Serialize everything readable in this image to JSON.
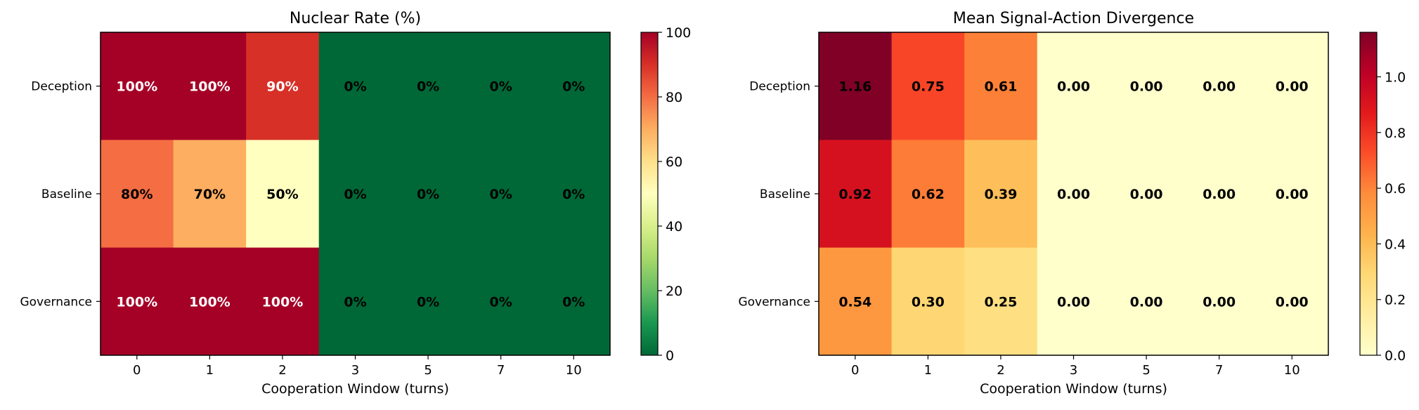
{
  "chart_data": [
    {
      "type": "heatmap",
      "title": "Nuclear Rate (%)",
      "xlabel": "Cooperation Window (turns)",
      "ylabel": "",
      "x_categories": [
        "0",
        "1",
        "2",
        "3",
        "5",
        "7",
        "10"
      ],
      "y_categories": [
        "Deception",
        "Baseline",
        "Governance"
      ],
      "values": [
        [
          100,
          100,
          90,
          0,
          0,
          0,
          0
        ],
        [
          80,
          70,
          50,
          0,
          0,
          0,
          0
        ],
        [
          100,
          100,
          100,
          0,
          0,
          0,
          0
        ]
      ],
      "cell_labels": [
        [
          "100%",
          "100%",
          "90%",
          "0%",
          "0%",
          "0%",
          "0%"
        ],
        [
          "80%",
          "70%",
          "50%",
          "0%",
          "0%",
          "0%",
          "0%"
        ],
        [
          "100%",
          "100%",
          "100%",
          "0%",
          "0%",
          "0%",
          "0%"
        ]
      ],
      "colormap": "RdYlGn_r",
      "vmin": 0,
      "vmax": 100,
      "colorbar_ticks": [
        "0",
        "20",
        "40",
        "60",
        "80",
        "100"
      ],
      "colorbar_tick_values": [
        0,
        20,
        40,
        60,
        80,
        100
      ]
    },
    {
      "type": "heatmap",
      "title": "Mean Signal-Action Divergence",
      "xlabel": "Cooperation Window (turns)",
      "ylabel": "",
      "x_categories": [
        "0",
        "1",
        "2",
        "3",
        "5",
        "7",
        "10"
      ],
      "y_categories": [
        "Deception",
        "Baseline",
        "Governance"
      ],
      "values": [
        [
          1.16,
          0.75,
          0.61,
          0.0,
          0.0,
          0.0,
          0.0
        ],
        [
          0.92,
          0.62,
          0.39,
          0.0,
          0.0,
          0.0,
          0.0
        ],
        [
          0.54,
          0.3,
          0.25,
          0.0,
          0.0,
          0.0,
          0.0
        ]
      ],
      "cell_labels": [
        [
          "1.16",
          "0.75",
          "0.61",
          "0.00",
          "0.00",
          "0.00",
          "0.00"
        ],
        [
          "0.92",
          "0.62",
          "0.39",
          "0.00",
          "0.00",
          "0.00",
          "0.00"
        ],
        [
          "0.54",
          "0.30",
          "0.25",
          "0.00",
          "0.00",
          "0.00",
          "0.00"
        ]
      ],
      "colormap": "YlOrRd",
      "vmin": 0,
      "vmax": 1.16,
      "colorbar_ticks": [
        "0.0",
        "0.2",
        "0.4",
        "0.6",
        "0.8",
        "1.0"
      ],
      "colorbar_tick_values": [
        0,
        0.2,
        0.4,
        0.6,
        0.8,
        1.0
      ]
    }
  ]
}
